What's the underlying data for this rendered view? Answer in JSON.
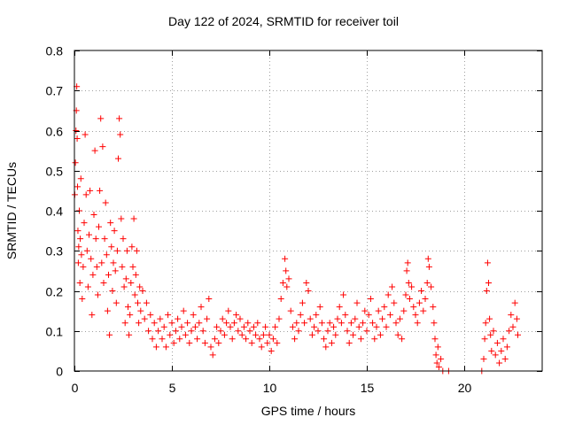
{
  "chart_data": {
    "type": "scatter",
    "title": "Day 122 of 2024, SRMTID for receiver toil",
    "xlabel": "GPS time / hours",
    "ylabel": "SRMTID / TECUs",
    "xlim": [
      0,
      24
    ],
    "ylim": [
      0,
      0.8
    ],
    "xticks": [
      0,
      5,
      10,
      15,
      20
    ],
    "yticks": [
      0,
      0.1,
      0.2,
      0.3,
      0.4,
      0.5,
      0.6,
      0.7,
      0.8
    ],
    "grid": true,
    "marker": "+",
    "color": "#ff0000",
    "series": [
      {
        "name": "SRMTID",
        "points": [
          [
            0.02,
            0.44
          ],
          [
            0.05,
            0.52
          ],
          [
            0.08,
            0.6
          ],
          [
            0.1,
            0.65
          ],
          [
            0.12,
            0.71
          ],
          [
            0.14,
            0.58
          ],
          [
            0.16,
            0.46
          ],
          [
            0.18,
            0.35
          ],
          [
            0.2,
            0.27
          ],
          [
            0.22,
            0.31
          ],
          [
            0.25,
            0.4
          ],
          [
            0.28,
            0.22
          ],
          [
            0.3,
            0.33
          ],
          [
            0.33,
            0.48
          ],
          [
            0.36,
            0.29
          ],
          [
            0.4,
            0.18
          ],
          [
            0.45,
            0.26
          ],
          [
            0.5,
            0.37
          ],
          [
            0.55,
            0.59
          ],
          [
            0.6,
            0.44
          ],
          [
            0.65,
            0.3
          ],
          [
            0.7,
            0.21
          ],
          [
            0.75,
            0.34
          ],
          [
            0.8,
            0.45
          ],
          [
            0.85,
            0.28
          ],
          [
            0.9,
            0.14
          ],
          [
            0.95,
            0.24
          ],
          [
            1.0,
            0.39
          ],
          [
            1.05,
            0.55
          ],
          [
            1.1,
            0.33
          ],
          [
            1.15,
            0.26
          ],
          [
            1.2,
            0.19
          ],
          [
            1.25,
            0.36
          ],
          [
            1.3,
            0.45
          ],
          [
            1.35,
            0.63
          ],
          [
            1.4,
            0.27
          ],
          [
            1.45,
            0.56
          ],
          [
            1.5,
            0.22
          ],
          [
            1.55,
            0.33
          ],
          [
            1.6,
            0.42
          ],
          [
            1.65,
            0.29
          ],
          [
            1.7,
            0.15
          ],
          [
            1.75,
            0.24
          ],
          [
            1.8,
            0.09
          ],
          [
            1.85,
            0.37
          ],
          [
            1.9,
            0.31
          ],
          [
            1.95,
            0.2
          ],
          [
            2.0,
            0.27
          ],
          [
            2.05,
            0.35
          ],
          [
            2.1,
            0.25
          ],
          [
            2.15,
            0.17
          ],
          [
            2.2,
            0.3
          ],
          [
            2.25,
            0.53
          ],
          [
            2.3,
            0.63
          ],
          [
            2.35,
            0.59
          ],
          [
            2.4,
            0.38
          ],
          [
            2.45,
            0.26
          ],
          [
            2.5,
            0.33
          ],
          [
            2.55,
            0.21
          ],
          [
            2.6,
            0.12
          ],
          [
            2.65,
            0.23
          ],
          [
            2.7,
            0.3
          ],
          [
            2.75,
            0.16
          ],
          [
            2.8,
            0.09
          ],
          [
            2.85,
            0.14
          ],
          [
            2.9,
            0.22
          ],
          [
            2.95,
            0.31
          ],
          [
            3.0,
            0.26
          ],
          [
            3.05,
            0.38
          ],
          [
            3.1,
            0.19
          ],
          [
            3.15,
            0.24
          ],
          [
            3.2,
            0.3
          ],
          [
            3.25,
            0.17
          ],
          [
            3.3,
            0.12
          ],
          [
            3.35,
            0.21
          ],
          [
            3.4,
            0.15
          ],
          [
            3.5,
            0.2
          ],
          [
            3.6,
            0.13
          ],
          [
            3.7,
            0.17
          ],
          [
            3.8,
            0.1
          ],
          [
            3.9,
            0.14
          ],
          [
            4.0,
            0.08
          ],
          [
            4.1,
            0.12
          ],
          [
            4.2,
            0.06
          ],
          [
            4.3,
            0.1
          ],
          [
            4.4,
            0.13
          ],
          [
            4.5,
            0.08
          ],
          [
            4.6,
            0.11
          ],
          [
            4.7,
            0.06
          ],
          [
            4.8,
            0.14
          ],
          [
            4.9,
            0.09
          ],
          [
            5.0,
            0.12
          ],
          [
            5.1,
            0.07
          ],
          [
            5.2,
            0.1
          ],
          [
            5.3,
            0.13
          ],
          [
            5.4,
            0.08
          ],
          [
            5.5,
            0.11
          ],
          [
            5.6,
            0.15
          ],
          [
            5.7,
            0.09
          ],
          [
            5.8,
            0.12
          ],
          [
            5.9,
            0.07
          ],
          [
            6.0,
            0.1
          ],
          [
            6.1,
            0.14
          ],
          [
            6.2,
            0.11
          ],
          [
            6.3,
            0.08
          ],
          [
            6.4,
            0.12
          ],
          [
            6.5,
            0.16
          ],
          [
            6.6,
            0.1
          ],
          [
            6.7,
            0.07
          ],
          [
            6.8,
            0.13
          ],
          [
            6.9,
            0.18
          ],
          [
            7.0,
            0.06
          ],
          [
            7.1,
            0.04
          ],
          [
            7.2,
            0.08
          ],
          [
            7.3,
            0.11
          ],
          [
            7.4,
            0.07
          ],
          [
            7.5,
            0.1
          ],
          [
            7.6,
            0.13
          ],
          [
            7.7,
            0.09
          ],
          [
            7.8,
            0.12
          ],
          [
            7.9,
            0.15
          ],
          [
            8.0,
            0.11
          ],
          [
            8.1,
            0.08
          ],
          [
            8.2,
            0.12
          ],
          [
            8.3,
            0.14
          ],
          [
            8.4,
            0.1
          ],
          [
            8.5,
            0.13
          ],
          [
            8.6,
            0.09
          ],
          [
            8.7,
            0.11
          ],
          [
            8.8,
            0.08
          ],
          [
            8.9,
            0.12
          ],
          [
            9.0,
            0.1
          ],
          [
            9.1,
            0.07
          ],
          [
            9.2,
            0.11
          ],
          [
            9.3,
            0.09
          ],
          [
            9.4,
            0.12
          ],
          [
            9.5,
            0.08
          ],
          [
            9.6,
            0.06
          ],
          [
            9.7,
            0.09
          ],
          [
            9.8,
            0.11
          ],
          [
            9.9,
            0.07
          ],
          [
            10.0,
            0.09
          ],
          [
            10.1,
            0.05
          ],
          [
            10.2,
            0.08
          ],
          [
            10.3,
            0.11
          ],
          [
            10.4,
            0.07
          ],
          [
            10.5,
            0.13
          ],
          [
            10.6,
            0.18
          ],
          [
            10.7,
            0.22
          ],
          [
            10.8,
            0.28
          ],
          [
            10.85,
            0.25
          ],
          [
            10.9,
            0.21
          ],
          [
            11.0,
            0.23
          ],
          [
            11.1,
            0.15
          ],
          [
            11.2,
            0.11
          ],
          [
            11.3,
            0.08
          ],
          [
            11.4,
            0.12
          ],
          [
            11.5,
            0.1
          ],
          [
            11.6,
            0.14
          ],
          [
            11.7,
            0.17
          ],
          [
            11.8,
            0.12
          ],
          [
            11.9,
            0.22
          ],
          [
            12.0,
            0.2
          ],
          [
            12.1,
            0.13
          ],
          [
            12.2,
            0.09
          ],
          [
            12.3,
            0.11
          ],
          [
            12.4,
            0.14
          ],
          [
            12.5,
            0.1
          ],
          [
            12.6,
            0.16
          ],
          [
            12.7,
            0.12
          ],
          [
            12.8,
            0.08
          ],
          [
            12.9,
            0.06
          ],
          [
            13.0,
            0.1
          ],
          [
            13.1,
            0.12
          ],
          [
            13.2,
            0.07
          ],
          [
            13.3,
            0.11
          ],
          [
            13.4,
            0.09
          ],
          [
            13.5,
            0.13
          ],
          [
            13.6,
            0.16
          ],
          [
            13.7,
            0.12
          ],
          [
            13.8,
            0.19
          ],
          [
            13.9,
            0.14
          ],
          [
            14.0,
            0.1
          ],
          [
            14.1,
            0.07
          ],
          [
            14.2,
            0.12
          ],
          [
            14.3,
            0.09
          ],
          [
            14.4,
            0.13
          ],
          [
            14.5,
            0.17
          ],
          [
            14.6,
            0.11
          ],
          [
            14.7,
            0.08
          ],
          [
            14.8,
            0.12
          ],
          [
            14.9,
            0.15
          ],
          [
            15.0,
            0.1
          ],
          [
            15.1,
            0.14
          ],
          [
            15.2,
            0.18
          ],
          [
            15.3,
            0.12
          ],
          [
            15.4,
            0.08
          ],
          [
            15.5,
            0.11
          ],
          [
            15.6,
            0.15
          ],
          [
            15.7,
            0.09
          ],
          [
            15.8,
            0.13
          ],
          [
            15.9,
            0.16
          ],
          [
            16.0,
            0.11
          ],
          [
            16.1,
            0.19
          ],
          [
            16.2,
            0.14
          ],
          [
            16.3,
            0.21
          ],
          [
            16.4,
            0.17
          ],
          [
            16.5,
            0.12
          ],
          [
            16.6,
            0.09
          ],
          [
            16.7,
            0.13
          ],
          [
            16.8,
            0.08
          ],
          [
            16.9,
            0.15
          ],
          [
            17.0,
            0.19
          ],
          [
            17.05,
            0.25
          ],
          [
            17.1,
            0.27
          ],
          [
            17.15,
            0.22
          ],
          [
            17.2,
            0.18
          ],
          [
            17.3,
            0.21
          ],
          [
            17.4,
            0.16
          ],
          [
            17.5,
            0.14
          ],
          [
            17.6,
            0.12
          ],
          [
            17.7,
            0.17
          ],
          [
            17.8,
            0.2
          ],
          [
            17.9,
            0.15
          ],
          [
            18.0,
            0.18
          ],
          [
            18.1,
            0.22
          ],
          [
            18.15,
            0.28
          ],
          [
            18.2,
            0.26
          ],
          [
            18.3,
            0.21
          ],
          [
            18.4,
            0.16
          ],
          [
            18.45,
            0.12
          ],
          [
            18.5,
            0.08
          ],
          [
            18.55,
            0.04
          ],
          [
            18.6,
            0.02
          ],
          [
            18.65,
            0.06
          ],
          [
            18.7,
            0.01
          ],
          [
            18.8,
            0.03
          ],
          [
            18.9,
            0.0
          ],
          [
            19.2,
            0.0
          ],
          [
            20.9,
            0.0
          ],
          [
            21.0,
            0.03
          ],
          [
            21.05,
            0.08
          ],
          [
            21.1,
            0.12
          ],
          [
            21.15,
            0.2
          ],
          [
            21.2,
            0.27
          ],
          [
            21.25,
            0.22
          ],
          [
            21.3,
            0.13
          ],
          [
            21.35,
            0.09
          ],
          [
            21.4,
            0.05
          ],
          [
            21.5,
            0.1
          ],
          [
            21.6,
            0.04
          ],
          [
            21.7,
            0.07
          ],
          [
            21.8,
            0.02
          ],
          [
            21.9,
            0.05
          ],
          [
            22.0,
            0.08
          ],
          [
            22.1,
            0.03
          ],
          [
            22.2,
            0.06
          ],
          [
            22.3,
            0.1
          ],
          [
            22.4,
            0.14
          ],
          [
            22.5,
            0.11
          ],
          [
            22.6,
            0.17
          ],
          [
            22.7,
            0.13
          ],
          [
            22.75,
            0.09
          ]
        ]
      }
    ]
  }
}
